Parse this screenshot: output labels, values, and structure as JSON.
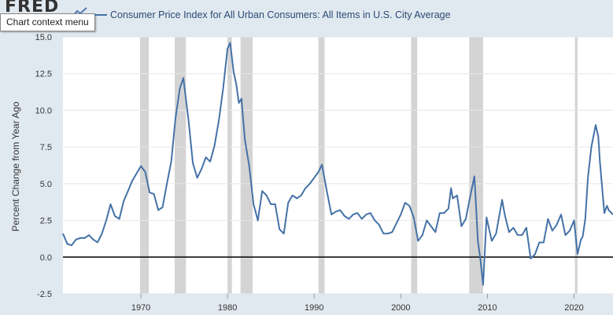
{
  "logo": {
    "text": "FRED"
  },
  "tooltip": {
    "text": "Chart context menu"
  },
  "colors": {
    "series": "#4572a7",
    "recession": "#d4d4d4",
    "background": "#e1e9f0",
    "plot": "#ffffff",
    "zero_line": "#000000"
  },
  "chart_data": {
    "type": "line",
    "title": "Consumer Price Index for All Urban Consumers: All Items in U.S. City Average",
    "legend": "Consumer Price Index for All Urban Consumers: All Items in U.S. City Average",
    "xlabel": "",
    "ylabel": "Percent Change from Year Ago",
    "xlim": [
      1961,
      2024.5
    ],
    "ylim": [
      -2.5,
      15
    ],
    "yticks": [
      -2.5,
      0,
      2.5,
      5,
      7.5,
      10,
      12.5,
      15
    ],
    "ytick_labels": [
      "-2.5",
      "0.0",
      "2.5",
      "5.0",
      "7.5",
      "10.0",
      "12.5",
      "15.0"
    ],
    "xticks": [
      1970,
      1980,
      1990,
      2000,
      2010,
      2020
    ],
    "xtick_labels": [
      "1970",
      "1980",
      "1990",
      "2000",
      "2010",
      "2020"
    ],
    "zero_line": 0,
    "recessions": [
      [
        1969.9,
        1970.9
      ],
      [
        1973.9,
        1975.2
      ],
      [
        1980.0,
        1980.5
      ],
      [
        1981.5,
        1982.9
      ],
      [
        1990.5,
        1991.2
      ],
      [
        2001.2,
        2001.9
      ],
      [
        2007.9,
        2009.5
      ],
      [
        2020.1,
        2020.4
      ]
    ],
    "series": [
      {
        "name": "CPIAUCSL",
        "x": [
          1961.0,
          1961.5,
          1962.0,
          1962.5,
          1963.0,
          1963.5,
          1964.0,
          1964.5,
          1965.0,
          1965.5,
          1966.0,
          1966.5,
          1967.0,
          1967.5,
          1968.0,
          1968.5,
          1969.0,
          1969.5,
          1970.0,
          1970.5,
          1971.0,
          1971.5,
          1972.0,
          1972.5,
          1973.0,
          1973.5,
          1974.0,
          1974.5,
          1974.9,
          1975.5,
          1976.0,
          1976.5,
          1977.0,
          1977.5,
          1978.0,
          1978.5,
          1979.0,
          1979.5,
          1980.0,
          1980.3,
          1980.7,
          1981.0,
          1981.3,
          1981.6,
          1982.0,
          1982.5,
          1983.0,
          1983.5,
          1984.0,
          1984.5,
          1985.0,
          1985.5,
          1986.0,
          1986.5,
          1987.0,
          1987.5,
          1988.0,
          1988.5,
          1989.0,
          1989.5,
          1990.0,
          1990.5,
          1990.9,
          1991.5,
          1992.0,
          1992.5,
          1993.0,
          1993.5,
          1994.0,
          1994.5,
          1995.0,
          1995.5,
          1996.0,
          1996.5,
          1997.0,
          1997.5,
          1998.0,
          1998.5,
          1999.0,
          1999.5,
          2000.0,
          2000.5,
          2001.0,
          2001.5,
          2002.0,
          2002.5,
          2003.0,
          2003.5,
          2004.0,
          2004.5,
          2005.0,
          2005.5,
          2005.8,
          2006.0,
          2006.5,
          2007.0,
          2007.5,
          2008.0,
          2008.5,
          2008.9,
          2009.2,
          2009.5,
          2009.9,
          2010.5,
          2011.0,
          2011.7,
          2012.0,
          2012.5,
          2013.0,
          2013.5,
          2014.0,
          2014.5,
          2015.0,
          2015.5,
          2016.0,
          2016.5,
          2017.0,
          2017.5,
          2018.0,
          2018.5,
          2019.0,
          2019.5,
          2020.0,
          2020.4,
          2020.8,
          2021.0,
          2021.3,
          2021.6,
          2022.0,
          2022.5,
          2022.8,
          2023.0,
          2023.5,
          2023.8,
          2024.0,
          2024.5
        ],
        "values": [
          1.6,
          0.9,
          0.8,
          1.2,
          1.3,
          1.3,
          1.5,
          1.2,
          1.0,
          1.6,
          2.5,
          3.6,
          2.8,
          2.6,
          3.8,
          4.5,
          5.2,
          5.7,
          6.2,
          5.8,
          4.4,
          4.3,
          3.2,
          3.4,
          5.0,
          6.5,
          9.5,
          11.5,
          12.2,
          9.3,
          6.4,
          5.4,
          6.0,
          6.8,
          6.5,
          7.6,
          9.3,
          11.5,
          14.2,
          14.6,
          12.6,
          11.8,
          10.5,
          10.8,
          8.0,
          6.2,
          3.6,
          2.5,
          4.5,
          4.2,
          3.6,
          3.6,
          1.9,
          1.6,
          3.7,
          4.2,
          4.0,
          4.2,
          4.7,
          5.0,
          5.4,
          5.8,
          6.3,
          4.4,
          2.9,
          3.1,
          3.2,
          2.8,
          2.6,
          2.9,
          3.0,
          2.6,
          2.9,
          3.0,
          2.5,
          2.2,
          1.6,
          1.6,
          1.7,
          2.3,
          2.9,
          3.7,
          3.5,
          2.7,
          1.1,
          1.5,
          2.5,
          2.1,
          1.7,
          3.0,
          3.0,
          3.3,
          4.7,
          4.0,
          4.2,
          2.1,
          2.6,
          4.1,
          5.5,
          1.1,
          -0.2,
          -1.9,
          2.7,
          1.1,
          1.6,
          3.9,
          2.9,
          1.7,
          2.0,
          1.5,
          1.5,
          2.0,
          -0.1,
          0.2,
          1.0,
          1.0,
          2.6,
          1.8,
          2.2,
          2.9,
          1.5,
          1.8,
          2.5,
          0.2,
          1.2,
          1.4,
          2.6,
          5.4,
          7.5,
          9.0,
          8.2,
          6.4,
          3.0,
          3.5,
          3.2,
          2.9
        ]
      }
    ]
  }
}
